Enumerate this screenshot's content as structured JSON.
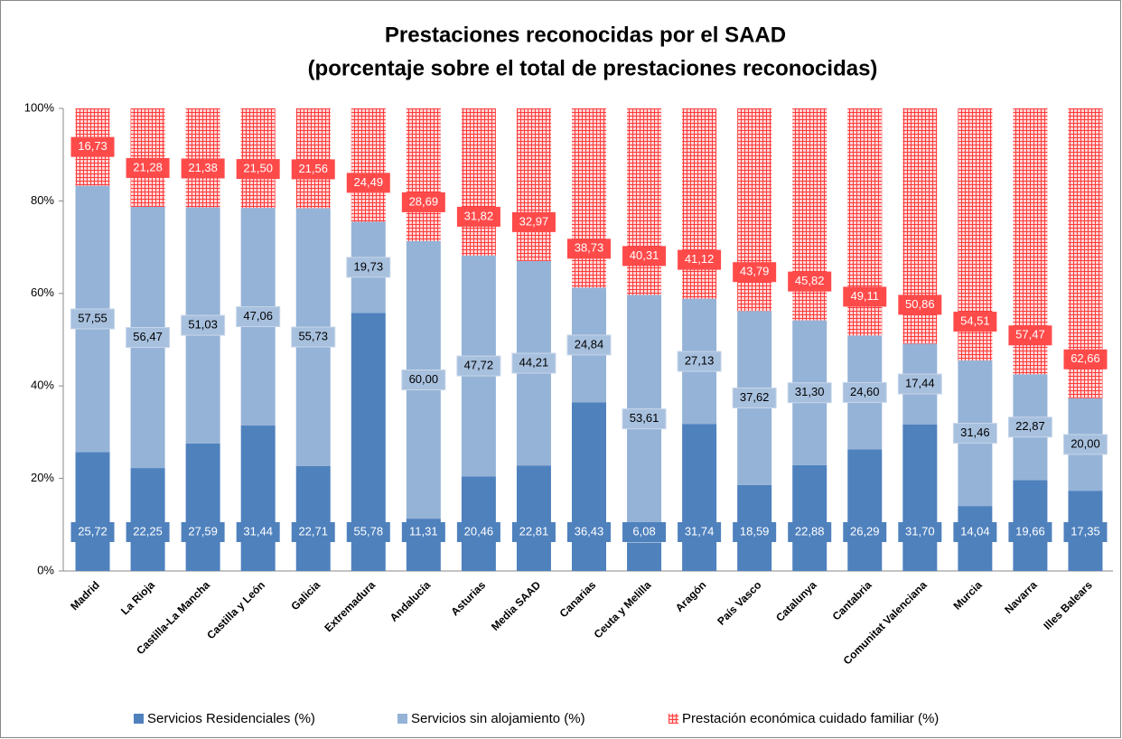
{
  "chart_data": {
    "type": "stacked-bar",
    "title": "Prestaciones reconocidas por el SAAD",
    "subtitle": "(porcentaje sobre el total de prestaciones reconocidas)",
    "categories": [
      "Madrid",
      "La Rioja",
      "Castilla-La Mancha",
      "Castilla y León",
      "Galicia",
      "Extremadura",
      "Andalucía",
      "Asturias",
      "Media SAAD",
      "Canarias",
      "Ceuta y Melilla",
      "Aragón",
      "País Vasco",
      "Catalunya",
      "Cantabria",
      "Comunitat Valenciana",
      "Murcia",
      "Navarra",
      "Illes Balears"
    ],
    "series": [
      {
        "name": "Servicios Residenciales (%)",
        "color": "#4f81bd",
        "values": [
          25.72,
          22.25,
          27.59,
          31.44,
          22.71,
          55.78,
          11.31,
          20.46,
          22.81,
          36.43,
          6.08,
          31.74,
          18.59,
          22.88,
          26.29,
          31.7,
          14.04,
          19.66,
          17.35
        ],
        "value_labels": [
          "25,72",
          "22,25",
          "27,59",
          "31,44",
          "22,71",
          "55,78",
          "11,31",
          "20,46",
          "22,81",
          "36,43",
          "6,08",
          "31,74",
          "18,59",
          "22,88",
          "26,29",
          "31,70",
          "14,04",
          "19,66",
          "17,35"
        ]
      },
      {
        "name": "Servicios sin alojamiento (%)",
        "color": "#95b3d7",
        "values": [
          57.55,
          56.47,
          51.03,
          47.06,
          55.73,
          19.73,
          60.0,
          47.72,
          44.21,
          24.84,
          53.61,
          27.13,
          37.62,
          31.3,
          24.6,
          17.44,
          31.46,
          22.87,
          20.0
        ],
        "value_labels": [
          "57,55",
          "56,47",
          "51,03",
          "47,06",
          "55,73",
          "19,73",
          "60,00",
          "47,72",
          "44,21",
          "24,84",
          "53,61",
          "27,13",
          "37,62",
          "31,30",
          "24,60",
          "17,44",
          "31,46",
          "22,87",
          "20,00"
        ]
      },
      {
        "name": "Prestación económica cuidado familiar (%)",
        "color": "#ff3b3b",
        "values": [
          16.73,
          21.28,
          21.38,
          21.5,
          21.56,
          24.49,
          28.69,
          31.82,
          32.97,
          38.73,
          40.31,
          41.12,
          43.79,
          45.82,
          49.11,
          50.86,
          54.51,
          57.47,
          62.66
        ],
        "value_labels": [
          "16,73",
          "21,28",
          "21,38",
          "21,50",
          "21,56",
          "24,49",
          "28,69",
          "31,82",
          "32,97",
          "38,73",
          "40,31",
          "41,12",
          "43,79",
          "45,82",
          "49,11",
          "50,86",
          "54,51",
          "57,47",
          "62,66"
        ]
      }
    ],
    "ylim": [
      0,
      100
    ],
    "yticks": [
      {
        "value": 0,
        "label": "0%"
      },
      {
        "value": 20,
        "label": "20%"
      },
      {
        "value": 40,
        "label": "40%"
      },
      {
        "value": 60,
        "label": "60%"
      },
      {
        "value": 80,
        "label": "80%"
      },
      {
        "value": 100,
        "label": "100%"
      }
    ],
    "grid": false,
    "legend": "bottom"
  }
}
